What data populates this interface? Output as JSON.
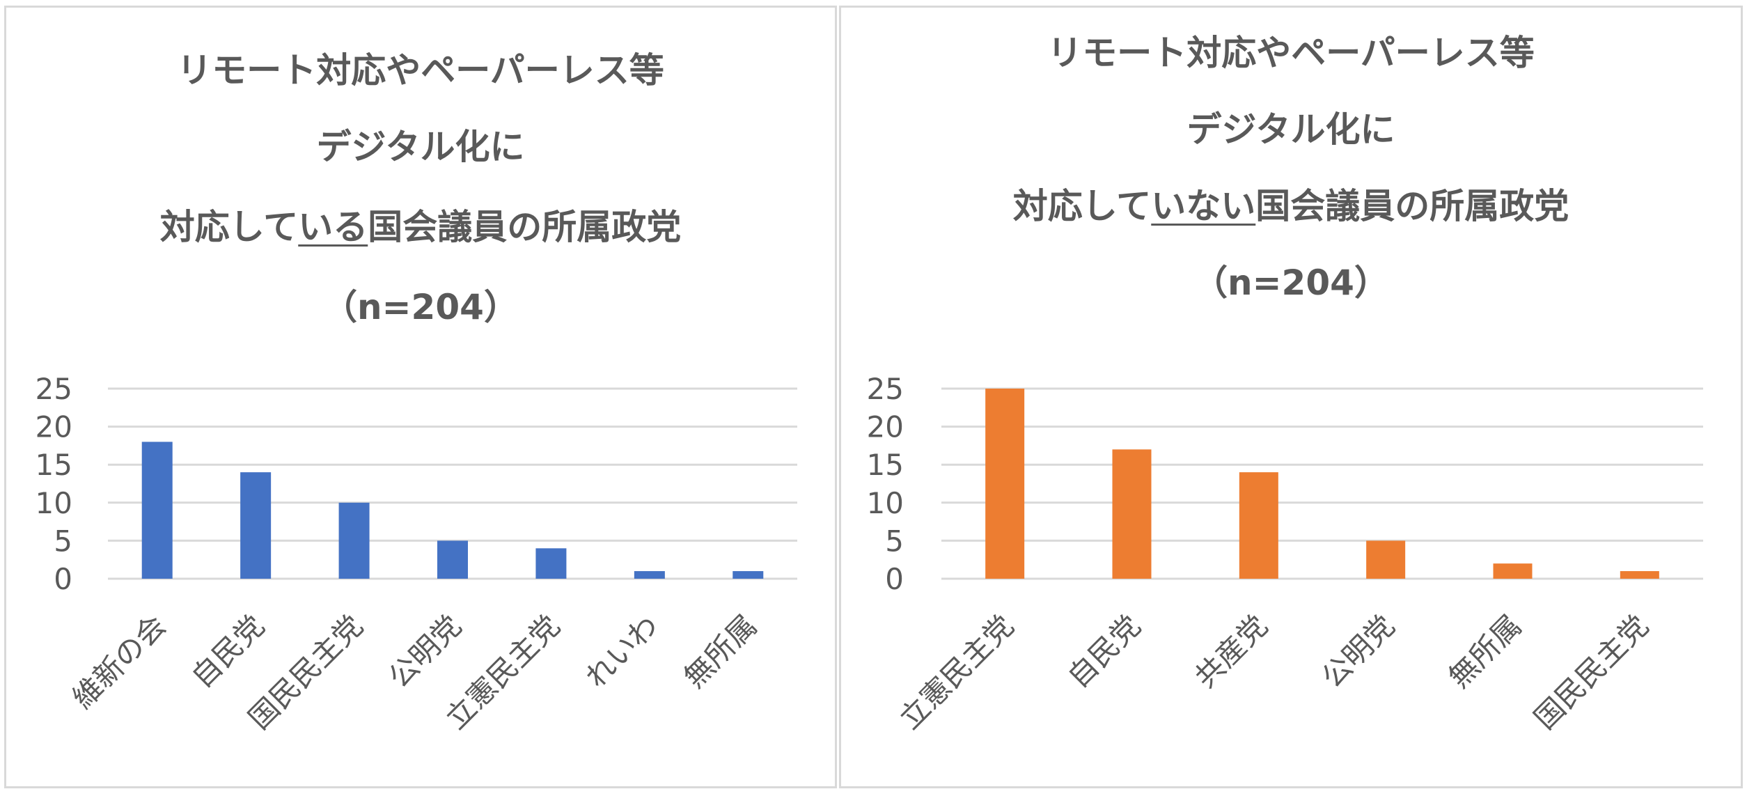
{
  "chart_data": [
    {
      "type": "bar",
      "title_lines": [
        "リモート対応やペーパーレス等",
        "デジタル化に"
      ],
      "title_line3": {
        "pre": "対応して",
        "emph": "いる",
        "post": "国会議員の所属政党"
      },
      "subtitle": "（n=204）",
      "categories": [
        "維新の会",
        "自民党",
        "国民民主党",
        "公明党",
        "立憲民主党",
        "れいわ",
        "無所属"
      ],
      "values": [
        18,
        14,
        10,
        5,
        4,
        1,
        1
      ],
      "ylim": [
        0,
        25
      ],
      "yticks": [
        "0",
        "5",
        "10",
        "15",
        "20",
        "25"
      ],
      "grid": true,
      "color": "#4472c4"
    },
    {
      "type": "bar",
      "title_lines": [
        "リモート対応やペーパーレス等",
        "デジタル化に"
      ],
      "title_line3": {
        "pre": "対応して",
        "emph": "いない",
        "post": "国会議員の所属政党"
      },
      "subtitle": "（n=204）",
      "categories": [
        "立憲民主党",
        "自民党",
        "共産党",
        "公明党",
        "無所属",
        "国民民主党"
      ],
      "values": [
        25,
        17,
        14,
        5,
        2,
        1
      ],
      "ylim": [
        0,
        25
      ],
      "yticks": [
        "0",
        "5",
        "10",
        "15",
        "20",
        "25"
      ],
      "grid": true,
      "color": "#ed7d31"
    }
  ]
}
